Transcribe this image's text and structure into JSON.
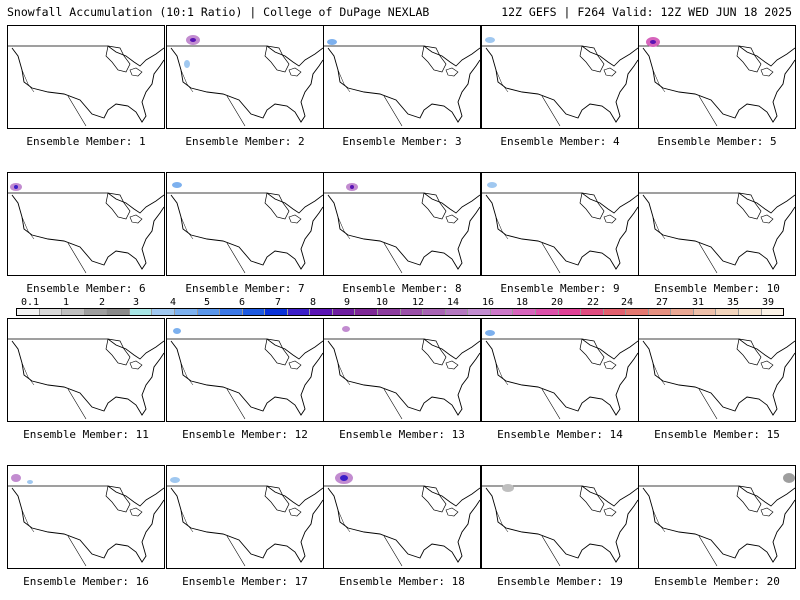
{
  "header": {
    "title_left": "Snowfall Accumulation (10:1 Ratio) | College of DuPage NEXLAB",
    "title_right": "12Z GEFS | F264 Valid: 12Z WED JUN 18 2025"
  },
  "panels": [
    {
      "label": "Ensemble Member: 1"
    },
    {
      "label": "Ensemble Member: 2"
    },
    {
      "label": "Ensemble Member: 3"
    },
    {
      "label": "Ensemble Member: 4"
    },
    {
      "label": "Ensemble Member: 5"
    },
    {
      "label": "Ensemble Member: 6"
    },
    {
      "label": "Ensemble Member: 7"
    },
    {
      "label": "Ensemble Member: 8"
    },
    {
      "label": "Ensemble Member: 9"
    },
    {
      "label": "Ensemble Member: 10"
    },
    {
      "label": "Ensemble Member: 11"
    },
    {
      "label": "Ensemble Member: 12"
    },
    {
      "label": "Ensemble Member: 13"
    },
    {
      "label": "Ensemble Member: 14"
    },
    {
      "label": "Ensemble Member: 15"
    },
    {
      "label": "Ensemble Member: 16"
    },
    {
      "label": "Ensemble Member: 17"
    },
    {
      "label": "Ensemble Member: 18"
    },
    {
      "label": "Ensemble Member: 19"
    },
    {
      "label": "Ensemble Member: 20"
    }
  ],
  "colorbar": {
    "labels": [
      "0.1",
      "1",
      "2",
      "3",
      "4",
      "5",
      "6",
      "7",
      "8",
      "9",
      "10",
      "12",
      "14",
      "16",
      "18",
      "20",
      "22",
      "24",
      "27",
      "31",
      "35",
      "39"
    ],
    "colors": [
      "#f2f2f2",
      "#d9d9d9",
      "#bfbfbf",
      "#9e9e9e",
      "#8a8a8a",
      "#a8e6e6",
      "#a0c8f0",
      "#7cb0ee",
      "#5a96ea",
      "#3c78e6",
      "#1e5ae0",
      "#0a32d8",
      "#3c1ec8",
      "#5a14b4",
      "#6e1ea0",
      "#7e2896",
      "#8c3c9e",
      "#9a50a8",
      "#a864b4",
      "#b478c0",
      "#c28cd0",
      "#cc78c8",
      "#d664bc",
      "#dc50aa",
      "#e04096",
      "#e04c80",
      "#e2606e",
      "#e47870",
      "#e69080",
      "#eaa894",
      "#eec0aa",
      "#f2d4bc",
      "#f6e4d0",
      "#fbf2e6"
    ]
  }
}
